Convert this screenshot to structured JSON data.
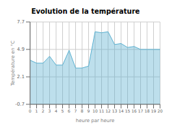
{
  "chart_data": {
    "type": "area",
    "title": "Evolution de la température",
    "xlabel": "heure par heure",
    "ylabel": "Température en °C",
    "x": [
      0,
      1,
      2,
      3,
      4,
      5,
      6,
      7,
      8,
      9,
      10,
      11,
      12,
      13,
      14,
      15,
      16,
      17,
      18,
      19,
      20
    ],
    "values": [
      3.8,
      3.5,
      3.5,
      4.2,
      3.3,
      3.3,
      4.8,
      3.0,
      3.0,
      3.2,
      6.7,
      6.6,
      6.7,
      5.4,
      5.5,
      5.1,
      5.2,
      4.9,
      4.9,
      4.9,
      4.9
    ],
    "xlim": [
      0,
      20
    ],
    "xticks": [
      0,
      1,
      2,
      3,
      4,
      5,
      6,
      7,
      8,
      9,
      10,
      11,
      12,
      13,
      14,
      15,
      16,
      17,
      18,
      19,
      20
    ],
    "ylim": [
      -0.7,
      7.7
    ],
    "yticks": [
      -0.7,
      2.1,
      4.9,
      7.7
    ],
    "grid": true,
    "color": "#5ab0d0"
  }
}
